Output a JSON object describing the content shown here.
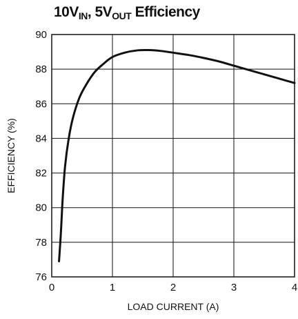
{
  "chart_data": {
    "type": "line",
    "title": {
      "main": "10V",
      "sub1": "IN",
      "mid": ", 5V",
      "sub2": "OUT",
      "end": " Efficiency"
    },
    "xlabel": "LOAD CURRENT (A)",
    "ylabel": "EFFICIENCY (%)",
    "xlim": [
      0,
      4
    ],
    "ylim": [
      76,
      90
    ],
    "xticks": [
      0,
      1,
      2,
      3,
      4
    ],
    "yticks": [
      76,
      78,
      80,
      82,
      84,
      86,
      88,
      90
    ],
    "grid": true,
    "series": [
      {
        "color": "#111111",
        "points": [
          [
            0.12,
            76.9
          ],
          [
            0.15,
            78.5
          ],
          [
            0.18,
            80.5
          ],
          [
            0.22,
            82.4
          ],
          [
            0.28,
            84.0
          ],
          [
            0.35,
            85.2
          ],
          [
            0.45,
            86.3
          ],
          [
            0.55,
            87.0
          ],
          [
            0.7,
            87.8
          ],
          [
            0.85,
            88.3
          ],
          [
            1.0,
            88.7
          ],
          [
            1.2,
            88.95
          ],
          [
            1.4,
            89.08
          ],
          [
            1.6,
            89.1
          ],
          [
            1.8,
            89.05
          ],
          [
            2.0,
            88.95
          ],
          [
            2.25,
            88.82
          ],
          [
            2.5,
            88.65
          ],
          [
            2.75,
            88.45
          ],
          [
            3.0,
            88.2
          ],
          [
            3.25,
            87.95
          ],
          [
            3.5,
            87.7
          ],
          [
            3.75,
            87.45
          ],
          [
            4.0,
            87.2
          ]
        ]
      }
    ]
  }
}
